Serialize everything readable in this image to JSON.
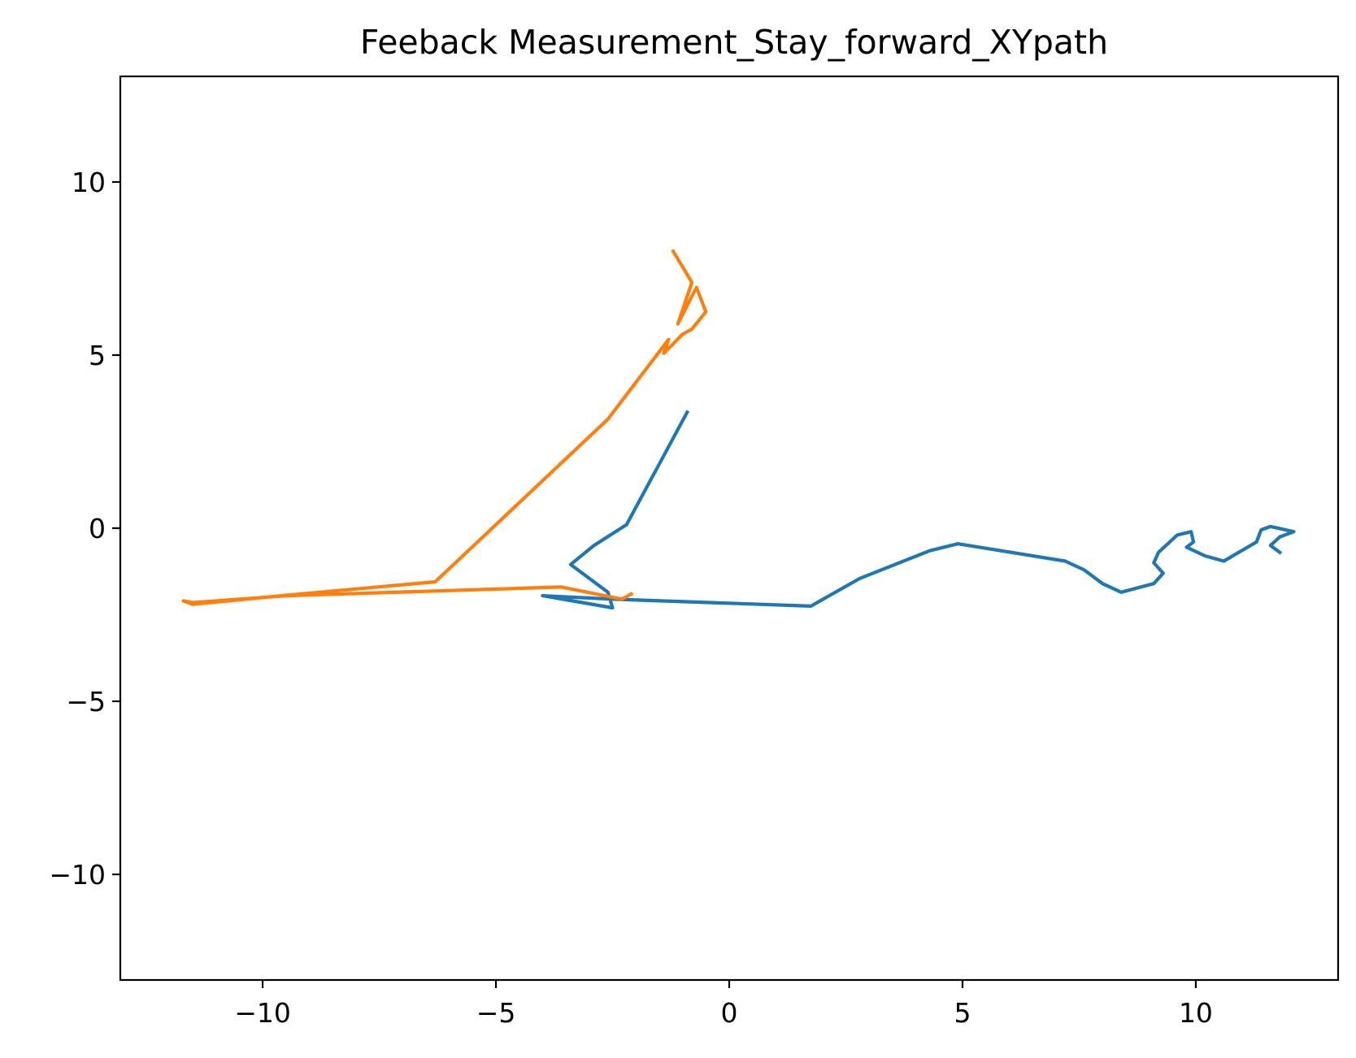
{
  "chart_data": {
    "type": "line",
    "title": "Feeback Measurement_Stay_forward_XYpath",
    "xlabel": "",
    "ylabel": "",
    "xlim": [
      -13.05,
      13.05
    ],
    "ylim": [
      -13.05,
      13.05
    ],
    "grid": false,
    "legend": "none",
    "x_ticks": [
      -10,
      -5,
      0,
      5,
      10
    ],
    "y_ticks": [
      -10,
      -5,
      0,
      5,
      10
    ],
    "x_tick_labels": [
      "−10",
      "−5",
      "0",
      "5",
      "10"
    ],
    "y_tick_labels": [
      "−10",
      "−5",
      "0",
      "5",
      "10"
    ],
    "series": [
      {
        "color": "#1f77b4",
        "x": [
          -0.9,
          -2.2,
          -2.9,
          -3.4,
          -2.6,
          -2.5,
          -4.0,
          -2.5,
          1.75,
          2.8,
          4.3,
          4.9,
          7.2,
          7.6,
          8.0,
          8.4,
          9.1,
          9.3,
          9.1,
          9.2,
          9.4,
          9.6,
          9.9,
          9.95,
          9.8,
          10.2,
          10.6,
          11.3,
          11.4,
          11.6,
          12.1,
          11.8,
          11.6,
          11.8
        ],
        "y": [
          3.35,
          0.1,
          -0.5,
          -1.05,
          -1.85,
          -2.3,
          -1.95,
          -2.05,
          -2.25,
          -1.45,
          -0.65,
          -0.45,
          -0.95,
          -1.2,
          -1.6,
          -1.85,
          -1.6,
          -1.3,
          -1.0,
          -0.7,
          -0.45,
          -0.2,
          -0.1,
          -0.4,
          -0.55,
          -0.8,
          -0.95,
          -0.4,
          -0.05,
          0.05,
          -0.1,
          -0.25,
          -0.5,
          -0.7
        ]
      },
      {
        "color": "#ff7f0e",
        "x": [
          -1.2,
          -0.8,
          -1.1,
          -0.8,
          -0.7,
          -0.5,
          -0.8,
          -1.0,
          -1.4,
          -1.3,
          -2.6,
          -6.3,
          -9.6,
          -11.5,
          -11.7,
          -11.5,
          -9.5,
          -3.6,
          -2.3,
          -2.1
        ],
        "y": [
          8.0,
          7.1,
          5.9,
          6.7,
          6.95,
          6.25,
          5.75,
          5.6,
          5.05,
          5.45,
          3.15,
          -1.55,
          -1.95,
          -2.2,
          -2.1,
          -2.15,
          -1.95,
          -1.7,
          -2.05,
          -1.9
        ]
      }
    ]
  }
}
